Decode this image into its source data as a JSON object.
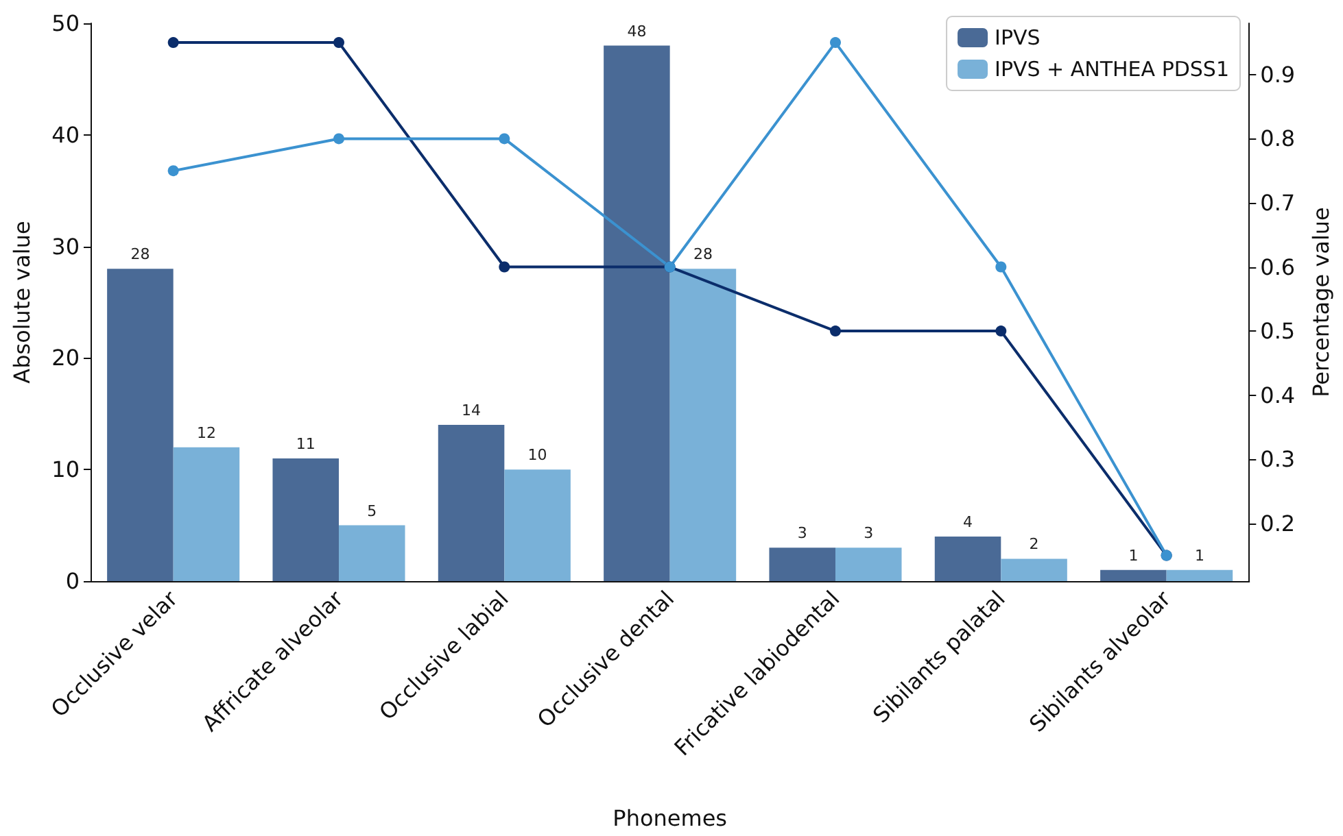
{
  "chart_data": {
    "type": "bar",
    "xlabel": "Phonemes",
    "ylabel": "Absolute value",
    "y2label": "Percentage value",
    "categories": [
      "Occlusive velar",
      "Affricate alveolar",
      "Occlusive labial",
      "Occlusive dental",
      "Fricative labiodental",
      "Sibilants palatal",
      "Sibilants alveolar"
    ],
    "series": [
      {
        "name": "IPVS",
        "color": "#4a6a96",
        "values": [
          28,
          11,
          14,
          48,
          3,
          4,
          1
        ],
        "data_labels": true
      },
      {
        "name": "IPVS + ANTHEA PDSS1",
        "color": "#79b1d8",
        "values": [
          12,
          5,
          10,
          28,
          3,
          2,
          1
        ],
        "data_labels": true
      },
      {
        "type": "line",
        "axis": "y2",
        "color": "#0b2d6b",
        "values": [
          0.95,
          0.95,
          0.6,
          0.6,
          0.5,
          0.5,
          0.15
        ]
      },
      {
        "type": "line",
        "axis": "y2",
        "color": "#3b92d0",
        "values": [
          0.75,
          0.8,
          0.8,
          0.6,
          0.95,
          0.6,
          0.15
        ]
      }
    ],
    "ylim": [
      0,
      50
    ],
    "yticks": [
      0,
      10,
      20,
      30,
      40,
      50
    ],
    "y2lim": [
      0.11,
      0.98
    ],
    "y2ticks": [
      0.2,
      0.3,
      0.4,
      0.5,
      0.6,
      0.7,
      0.8,
      0.9
    ],
    "grid": false,
    "legend": "top right",
    "marker": "circle",
    "line_style": "solid"
  }
}
